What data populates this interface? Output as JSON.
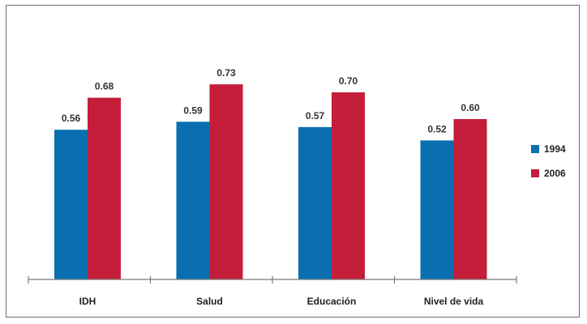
{
  "chart_data": {
    "type": "bar",
    "categories": [
      "IDH",
      "Salud",
      "Educación",
      "Nivel de vida"
    ],
    "series": [
      {
        "name": "1994",
        "values": [
          0.56,
          0.59,
          0.57,
          0.52
        ],
        "labels": [
          "0.56",
          "0.59",
          "0.57",
          "0.52"
        ],
        "color": "#0a6fb0"
      },
      {
        "name": "2006",
        "values": [
          0.68,
          0.73,
          0.7,
          0.6
        ],
        "labels": [
          "0.68",
          "0.73",
          "0.70",
          "0.60"
        ],
        "color": "#c41e3a"
      }
    ],
    "title": "",
    "xlabel": "",
    "ylabel": "",
    "ylim": [
      0,
      0.8
    ],
    "grid": false,
    "legend_position": "right"
  }
}
